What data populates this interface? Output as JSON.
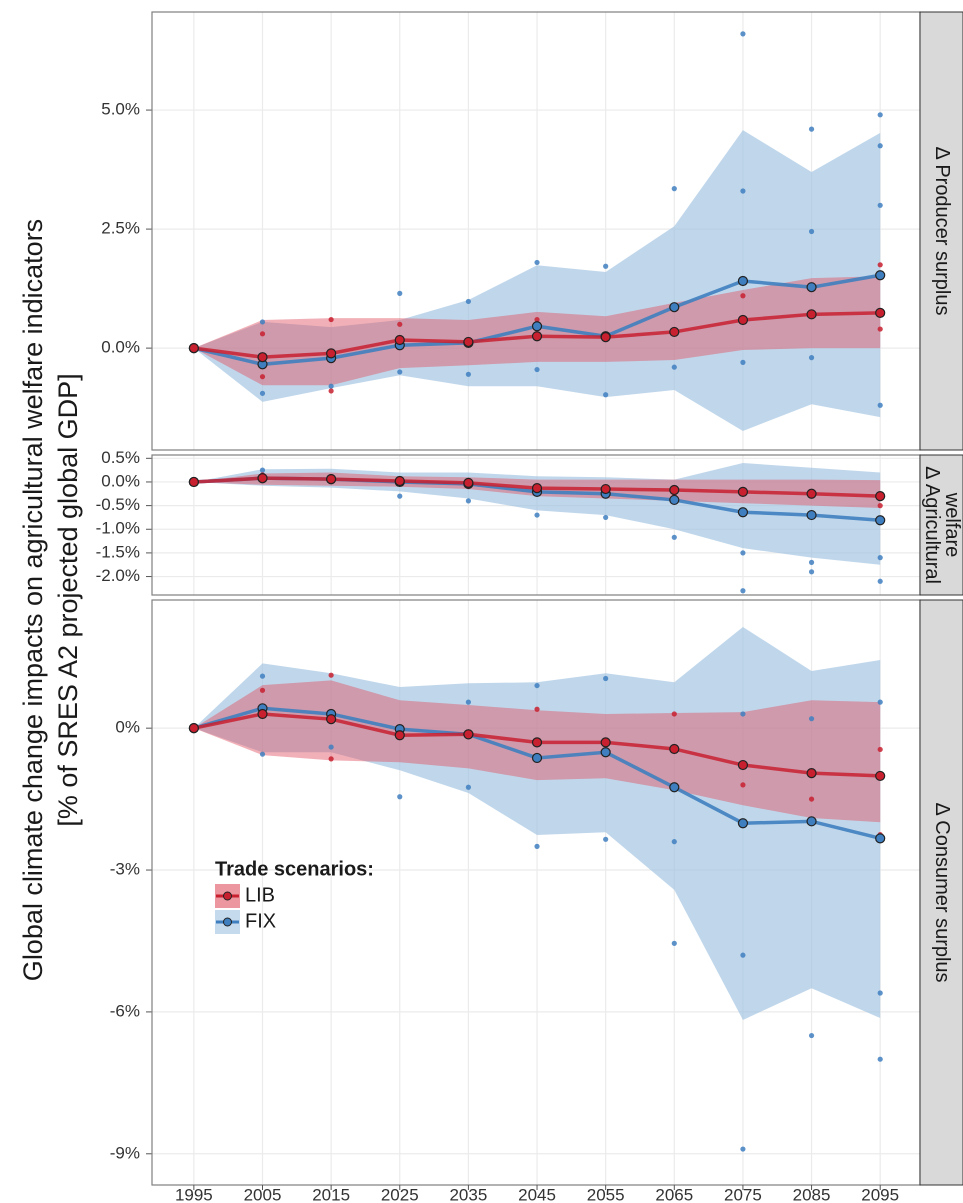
{
  "chart_data": {
    "type": "line",
    "ylabel": [
      "Global climate change impacts on agricultural welfare indicators",
      "[% of SRES A2 projected global GDP]"
    ],
    "x": [
      1995,
      2005,
      2015,
      2025,
      2035,
      2045,
      2055,
      2065,
      2075,
      2085,
      2095
    ],
    "xlim": [
      1988.9,
      2100.8
    ],
    "xticks": [
      1995,
      2005,
      2015,
      2025,
      2035,
      2045,
      2055,
      2065,
      2075,
      2085,
      2095
    ],
    "grid": true,
    "legend": {
      "title": "Trade scenarios:",
      "position": "bottom-left"
    },
    "series": [
      {
        "name": "LIB",
        "color": "#c8202f",
        "band_color": "#e0505f"
      },
      {
        "name": "FIX",
        "color": "#3f7fbf",
        "band_color": "#9ec1e0"
      }
    ],
    "panels": [
      {
        "strip": [
          "Δ Producer surplus"
        ],
        "ylim": [
          -2.14,
          7.06
        ],
        "yticks": [
          {
            "value": 0,
            "label": "0.0%"
          },
          {
            "value": 2.5,
            "label": "2.5%"
          },
          {
            "value": 5,
            "label": "5.0%"
          }
        ],
        "lines": [
          {
            "values": [
              0,
              -0.19,
              -0.11,
              0.17,
              0.13,
              0.25,
              0.23,
              0.34,
              0.59,
              0.71,
              0.74
            ],
            "upper": [
              0,
              0.59,
              0.63,
              0.63,
              0.59,
              0.76,
              0.67,
              0.95,
              1.22,
              1.47,
              1.51
            ],
            "lower": [
              0,
              -0.78,
              -0.78,
              -0.42,
              -0.36,
              -0.29,
              -0.29,
              -0.25,
              -0.04,
              0,
              0
            ],
            "points_x": [
              2005,
              2005,
              2015,
              2015,
              2025,
              2045,
              2065,
              2075,
              2085,
              2095,
              2095
            ],
            "points_y": [
              0.3,
              -0.6,
              0.6,
              -0.9,
              0.5,
              0.6,
              0.9,
              1.1,
              1.3,
              1.75,
              0.4
            ]
          },
          {
            "values": [
              0,
              -0.34,
              -0.21,
              0.06,
              0.11,
              0.46,
              0.25,
              0.86,
              1.41,
              1.28,
              1.53
            ],
            "upper": [
              0,
              0.55,
              0.44,
              0.59,
              1.01,
              1.74,
              1.6,
              2.56,
              4.58,
              3.7,
              4.52
            ],
            "lower": [
              0,
              -1.13,
              -0.84,
              -0.57,
              -0.8,
              -0.8,
              -1.03,
              -0.88,
              -1.74,
              -1.18,
              -1.45
            ],
            "points_x": [
              2005,
              2005,
              2015,
              2025,
              2025,
              2035,
              2035,
              2045,
              2045,
              2055,
              2055,
              2065,
              2065,
              2075,
              2075,
              2075,
              2085,
              2085,
              2085,
              2095,
              2095,
              2095,
              2095
            ],
            "points_y": [
              0.55,
              -0.95,
              -0.8,
              1.15,
              -0.5,
              0.98,
              -0.55,
              1.8,
              -0.45,
              1.72,
              -0.98,
              3.35,
              -0.4,
              6.6,
              3.3,
              -0.3,
              4.6,
              2.45,
              -0.2,
              4.9,
              4.25,
              3.0,
              -1.2
            ]
          }
        ]
      },
      {
        "strip": [
          "Δ Agricultural",
          "welfare"
        ],
        "ylim": [
          -2.39,
          0.57
        ],
        "yticks": [
          {
            "value": 0.5,
            "label": "0.5%"
          },
          {
            "value": 0,
            "label": "0.0%"
          },
          {
            "value": -0.5,
            "label": "-0.5%"
          },
          {
            "value": -1,
            "label": "-1.0%"
          },
          {
            "value": -1.5,
            "label": "-1.5%"
          },
          {
            "value": -2,
            "label": "-2.0%"
          }
        ],
        "lines": [
          {
            "values": [
              0,
              0.08,
              0.06,
              0.02,
              -0.02,
              -0.13,
              -0.15,
              -0.17,
              -0.21,
              -0.25,
              -0.3
            ],
            "upper": [
              0,
              0.18,
              0.2,
              0.12,
              0.1,
              0.05,
              0.05,
              0.05,
              0.05,
              0.05,
              0.04
            ],
            "lower": [
              0,
              -0.06,
              -0.08,
              -0.1,
              -0.15,
              -0.3,
              -0.35,
              -0.4,
              -0.45,
              -0.5,
              -0.55
            ],
            "points_x": [
              2005,
              2035,
              2065,
              2095
            ],
            "points_y": [
              0.15,
              -0.1,
              -0.3,
              -0.5
            ]
          },
          {
            "values": [
              0,
              0.08,
              0.06,
              0,
              -0.04,
              -0.21,
              -0.25,
              -0.38,
              -0.64,
              -0.7,
              -0.81
            ],
            "upper": [
              0,
              0.27,
              0.28,
              0.2,
              0.2,
              0.12,
              0.1,
              0.05,
              0.4,
              0.3,
              0.2
            ],
            "lower": [
              0,
              -0.08,
              -0.12,
              -0.2,
              -0.35,
              -0.6,
              -0.7,
              -1.0,
              -1.4,
              -1.6,
              -1.75
            ],
            "points_x": [
              2005,
              2025,
              2035,
              2045,
              2055,
              2065,
              2075,
              2075,
              2085,
              2085,
              2095,
              2095
            ],
            "points_y": [
              0.25,
              -0.3,
              -0.4,
              -0.7,
              -0.75,
              -1.17,
              -1.5,
              -2.3,
              -1.9,
              -1.7,
              -2.1,
              -1.6
            ]
          }
        ]
      },
      {
        "strip": [
          "Δ Consumer surplus"
        ],
        "ylim": [
          -9.66,
          2.71
        ],
        "yticks": [
          {
            "value": 0,
            "label": "0%"
          },
          {
            "value": -3,
            "label": "-3%"
          },
          {
            "value": -6,
            "label": "-6%"
          },
          {
            "value": -9,
            "label": "-9%"
          }
        ],
        "lines": [
          {
            "values": [
              0,
              0.3,
              0.19,
              -0.15,
              -0.13,
              -0.3,
              -0.3,
              -0.44,
              -0.78,
              -0.95,
              -1.01
            ],
            "upper": [
              0,
              0.91,
              1.01,
              0.59,
              0.49,
              0.38,
              0.3,
              0.32,
              0.34,
              0.59,
              0.55
            ],
            "lower": [
              0,
              -0.57,
              -0.68,
              -0.72,
              -0.85,
              -1.1,
              -1.06,
              -1.31,
              -1.63,
              -1.9,
              -1.99
            ],
            "points_x": [
              2005,
              2015,
              2015,
              2045,
              2065,
              2075,
              2085,
              2095,
              2095
            ],
            "points_y": [
              0.8,
              1.12,
              -0.65,
              0.4,
              0.3,
              -1.2,
              -1.5,
              -0.45,
              -2.25
            ]
          },
          {
            "values": [
              0,
              0.42,
              0.3,
              -0.02,
              -0.13,
              -0.63,
              -0.51,
              -1.25,
              -2.01,
              -1.97,
              -2.33
            ],
            "upper": [
              0,
              1.37,
              1.16,
              0.87,
              0.95,
              0.97,
              1.16,
              0.97,
              2.14,
              1.21,
              1.44
            ],
            "lower": [
              0,
              -0.51,
              -0.51,
              -0.89,
              -1.37,
              -2.26,
              -2.2,
              -3.42,
              -6.17,
              -5.5,
              -6.13
            ],
            "points_x": [
              2005,
              2005,
              2015,
              2025,
              2035,
              2035,
              2045,
              2045,
              2055,
              2055,
              2065,
              2065,
              2075,
              2075,
              2075,
              2085,
              2085,
              2095,
              2095,
              2095
            ],
            "points_y": [
              1.1,
              -0.55,
              -0.4,
              -1.45,
              0.55,
              -1.25,
              0.9,
              -2.5,
              1.05,
              -2.35,
              -2.4,
              -4.55,
              0.3,
              -4.8,
              -8.9,
              0.2,
              -6.5,
              0.55,
              -5.6,
              -7.0
            ]
          }
        ]
      }
    ]
  }
}
